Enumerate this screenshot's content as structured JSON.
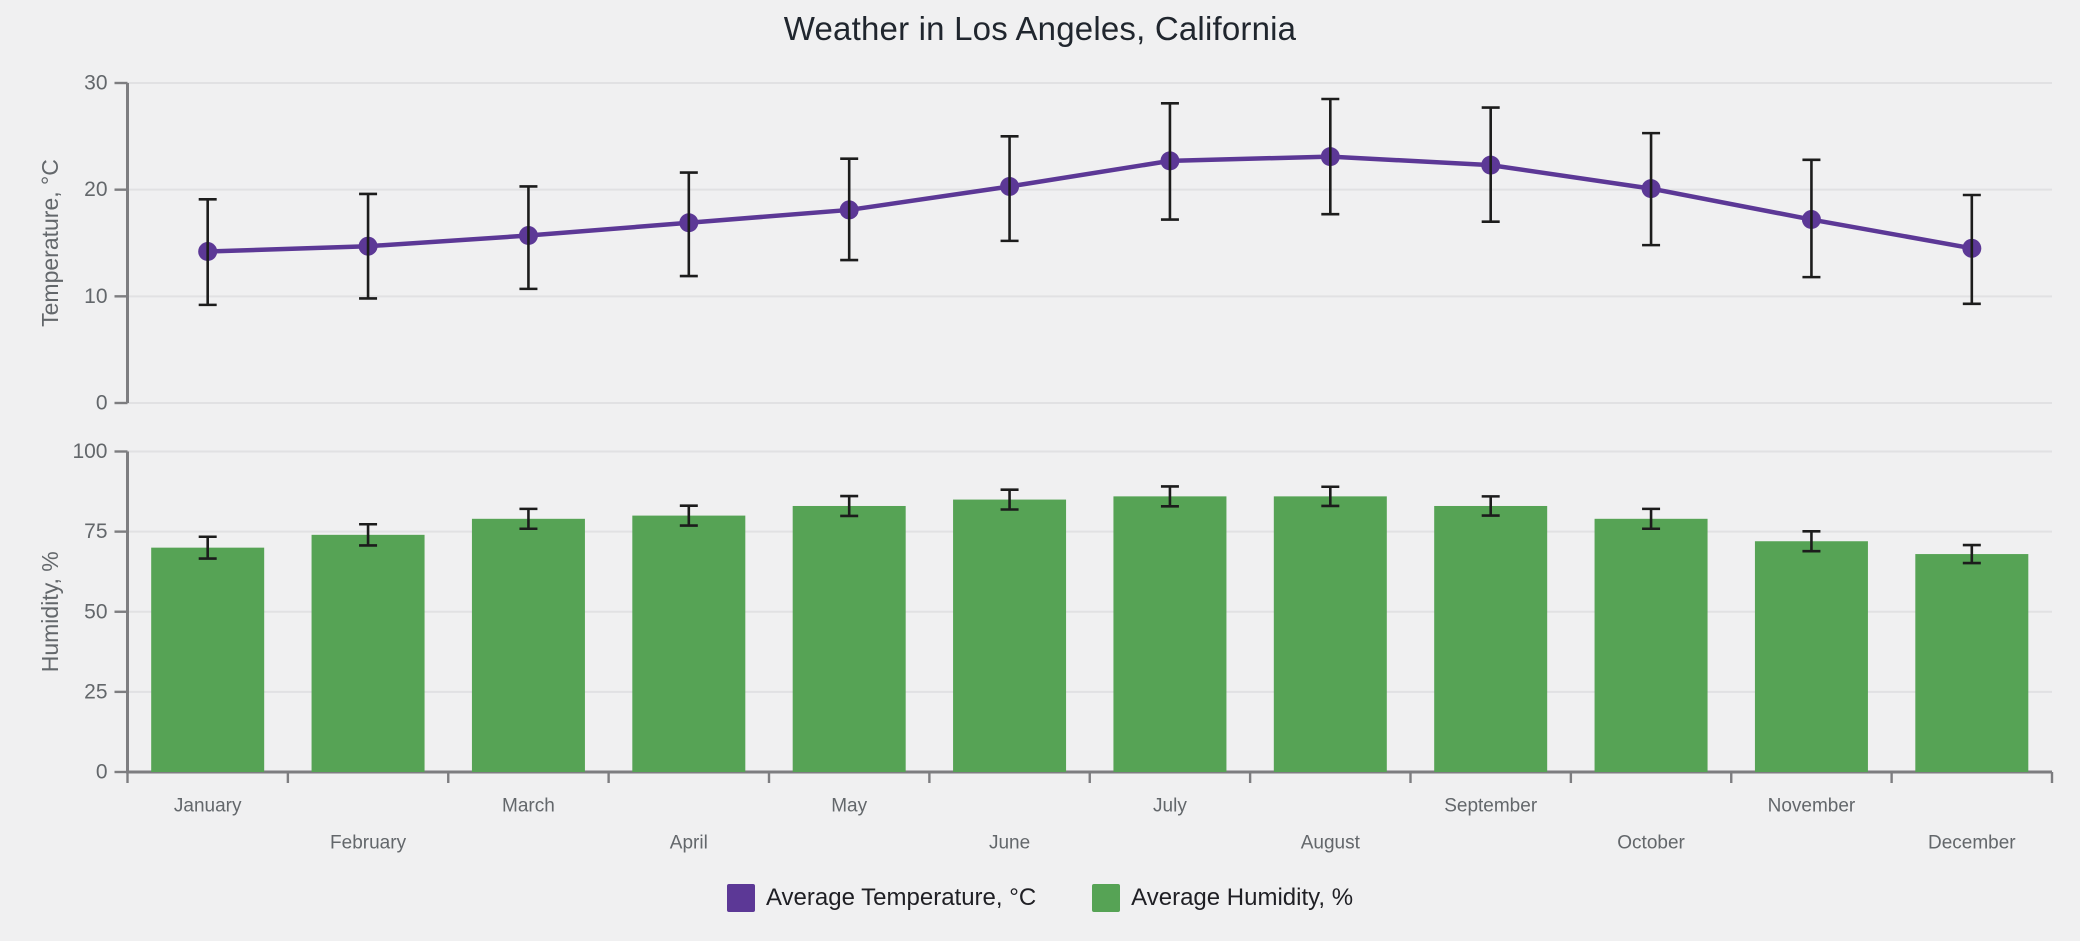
{
  "title": "Weather in Los Angeles, California",
  "months": [
    "January",
    "February",
    "March",
    "April",
    "May",
    "June",
    "July",
    "August",
    "September",
    "October",
    "November",
    "December"
  ],
  "legend": {
    "position": "bottom",
    "items": [
      {
        "label": "Average Temperature, °C",
        "color": "#5c3896",
        "series": "temperature"
      },
      {
        "label": "Average Humidity, %",
        "color": "#56a355",
        "series": "humidity"
      }
    ]
  },
  "colors": {
    "background": "#f0f0f1",
    "temperature_series": "#5c3896",
    "humidity_series": "#56a355",
    "error_bar": "#1c1c1c",
    "grid_line": "#e1e1e3",
    "axis_line": "#7d7d80",
    "tick_label": "#63676b",
    "axis_title": "#63676b",
    "month_label": "#63676b",
    "title_text": "#20262e",
    "legend_text": "#1f1f24"
  },
  "chart_data": [
    {
      "type": "line",
      "name": "Average Temperature, °C",
      "categories": [
        "January",
        "February",
        "March",
        "April",
        "May",
        "June",
        "July",
        "August",
        "September",
        "October",
        "November",
        "December"
      ],
      "values": [
        14.2,
        14.7,
        15.7,
        16.9,
        18.1,
        20.3,
        22.7,
        23.1,
        22.3,
        20.1,
        17.2,
        14.5
      ],
      "error_low": [
        9.2,
        9.8,
        10.7,
        11.9,
        13.4,
        15.2,
        17.2,
        17.7,
        17.0,
        14.8,
        11.8,
        9.3
      ],
      "error_high": [
        19.1,
        19.6,
        20.3,
        21.6,
        22.9,
        25.0,
        28.1,
        28.5,
        27.7,
        25.3,
        22.8,
        19.5
      ],
      "xlabel": "",
      "ylabel": "Temperature, °C",
      "yticks": [
        0,
        10,
        20,
        30
      ],
      "ylim": [
        0,
        30
      ],
      "grid": true,
      "legend_position": "bottom"
    },
    {
      "type": "bar",
      "name": "Average Humidity, %",
      "categories": [
        "January",
        "February",
        "March",
        "April",
        "May",
        "June",
        "July",
        "August",
        "September",
        "October",
        "November",
        "December"
      ],
      "values": [
        70,
        74,
        79,
        80,
        83,
        85,
        86,
        86,
        83,
        79,
        72,
        68
      ],
      "error": [
        3.4,
        3.3,
        3.1,
        3.1,
        3.1,
        3.1,
        3.1,
        3.0,
        3.0,
        3.1,
        3.1,
        2.8
      ],
      "xlabel": "",
      "ylabel": "Humidity, %",
      "yticks": [
        0,
        25,
        50,
        75,
        100
      ],
      "ylim": [
        0,
        100
      ],
      "grid": true,
      "legend_position": "bottom"
    }
  ]
}
